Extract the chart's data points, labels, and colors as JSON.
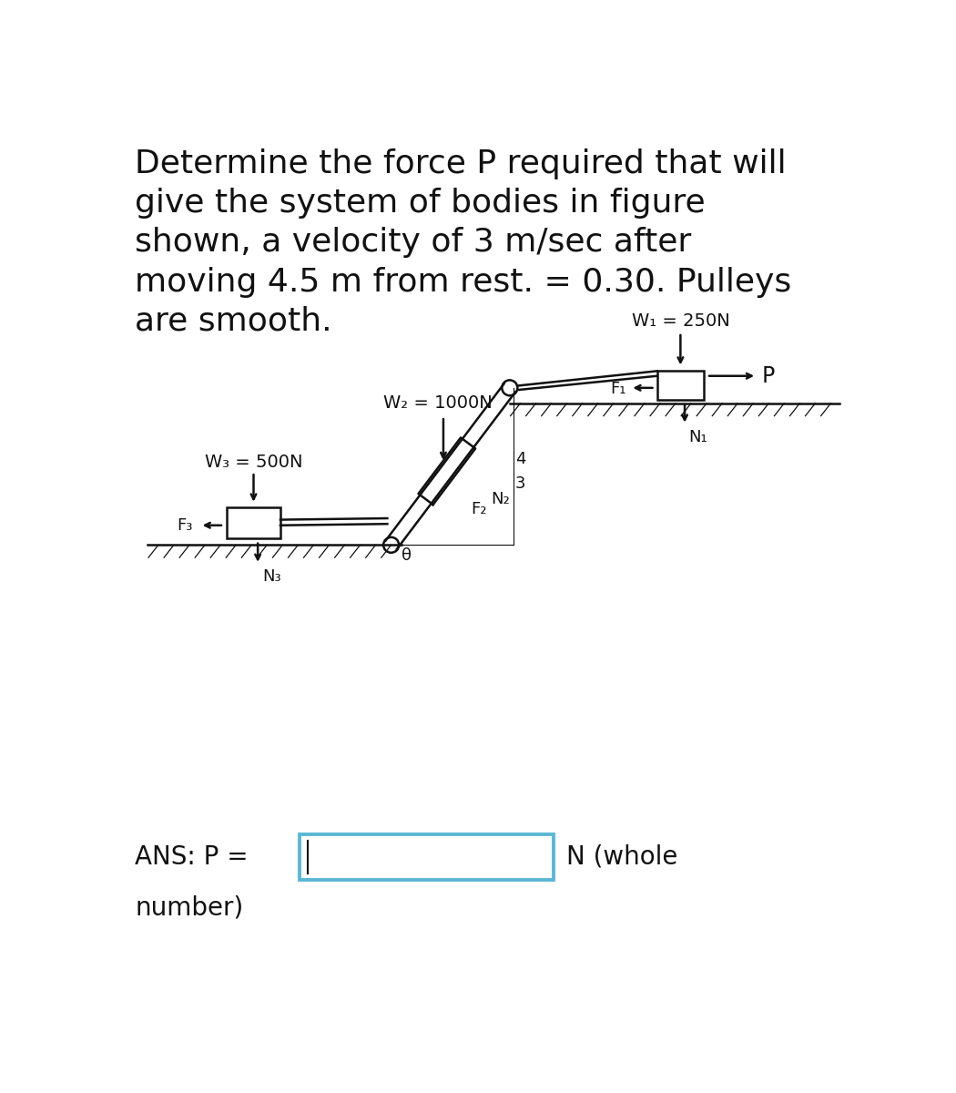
{
  "bg_color": "#ffffff",
  "title_lines": [
    "Determine the force P required that will",
    "give the system of bodies in figure",
    "shown, a velocity of 3 m/sec after",
    "moving 4.5 m from rest. = 0.30. Pulleys",
    "are smooth."
  ],
  "w1_label": "W₁ = 250N",
  "w2_label": "W₂ = 1000N",
  "w3_label": "W₃ = 500N",
  "p_label": "P",
  "f1_label": "F₁",
  "n1_label": "N₁",
  "f2_label": "F₂",
  "n2_label": "N₂",
  "f3_label": "F₃",
  "n3_label": "N₃",
  "theta_label": "θ",
  "ratio_label_3": "3",
  "ratio_label_4": "4",
  "ans_label": "ANS: P = ",
  "n_whole_label": "N (whole",
  "number_label": "number)",
  "line_color": "#111111",
  "text_color": "#111111",
  "box_color": "#5bb8d4",
  "font_size_title": 26,
  "font_size_labels": 14,
  "font_size_ans": 20
}
